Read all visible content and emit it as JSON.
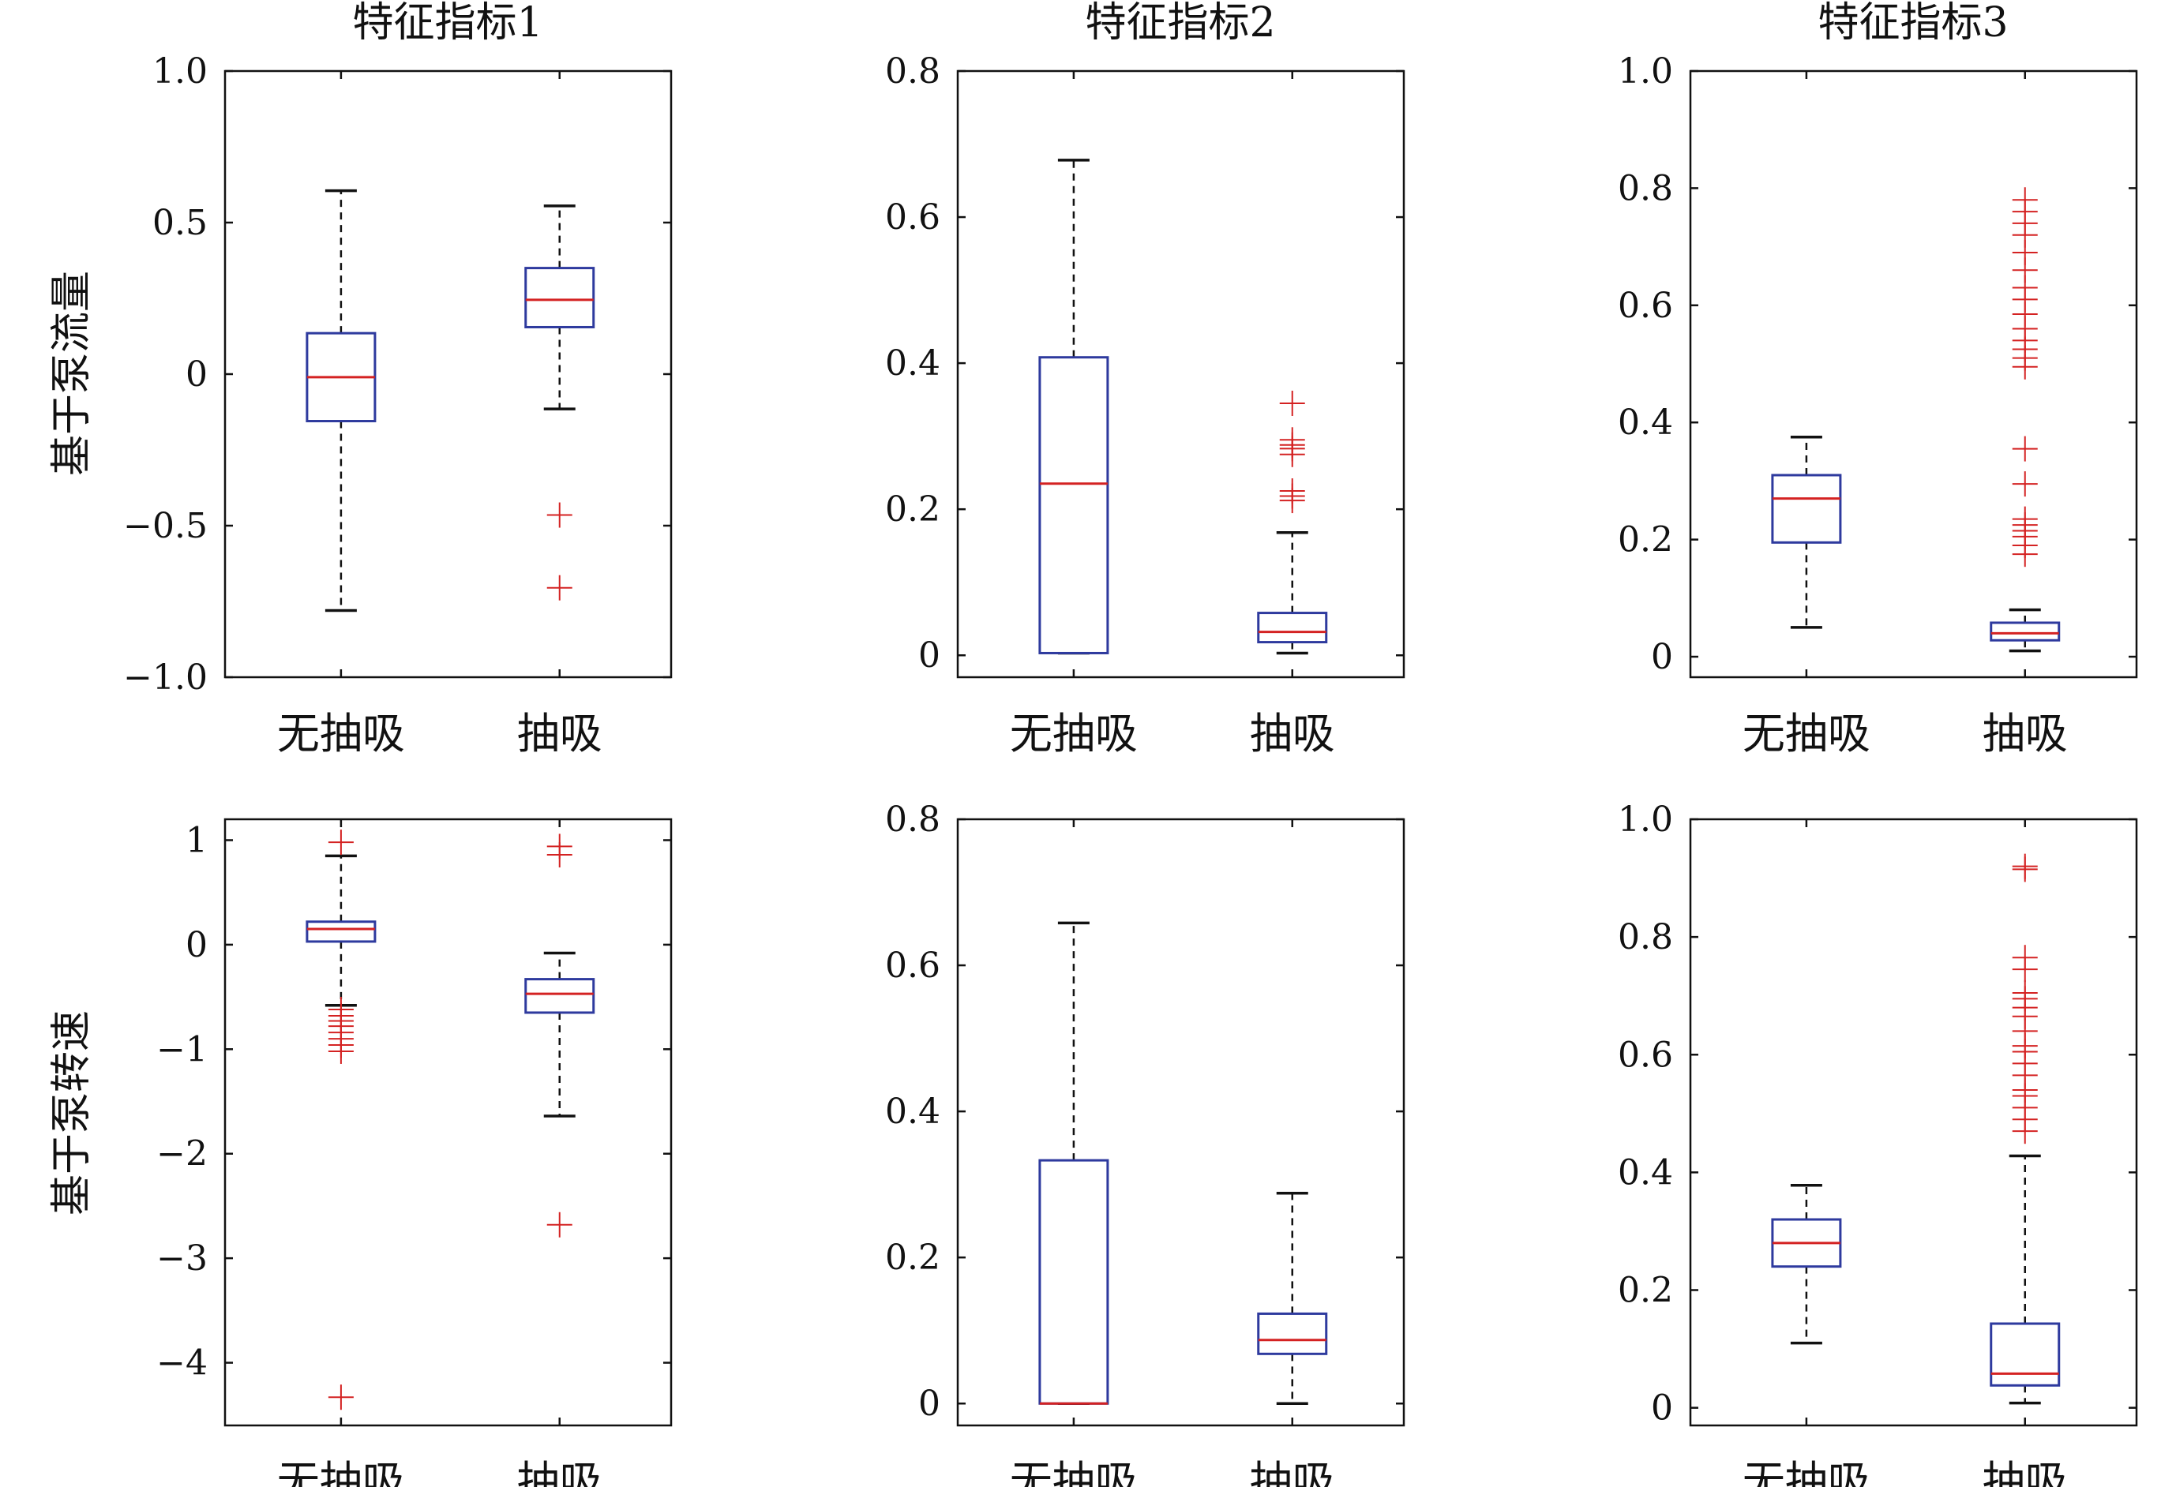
{
  "colors": {
    "box": "#2e3a9e",
    "median": "#d42222",
    "outlier": "#d42222",
    "whisker": "#111111",
    "axis": "#111111"
  },
  "column_titles": [
    "特征指标1",
    "特征指标2",
    "特征指标3"
  ],
  "row_labels": [
    "基于泵流量",
    "基于泵转速"
  ],
  "chart_data": [
    {
      "type": "boxplot",
      "row": 0,
      "col": 0,
      "categories": [
        "无抽吸",
        "抽吸"
      ],
      "ylim": [
        -1.0,
        1.0
      ],
      "yticks": [
        -1.0,
        -0.5,
        0,
        0.5,
        1.0
      ],
      "ytick_labels": [
        "−1.0",
        "−0.5",
        "0",
        "0.5",
        "1.0"
      ],
      "boxes": [
        {
          "whisker_low": -0.78,
          "q1": -0.155,
          "median": -0.01,
          "q3": 0.135,
          "whisker_high": 0.605,
          "outliers": []
        },
        {
          "whisker_low": -0.115,
          "q1": 0.155,
          "median": 0.245,
          "q3": 0.35,
          "whisker_high": 0.555,
          "outliers": [
            -0.465,
            -0.705
          ]
        }
      ]
    },
    {
      "type": "boxplot",
      "row": 0,
      "col": 1,
      "categories": [
        "无抽吸",
        "抽吸"
      ],
      "ylim": [
        -0.03,
        0.8
      ],
      "yticks": [
        0,
        0.2,
        0.4,
        0.6,
        0.8
      ],
      "ytick_labels": [
        "0",
        "0.2",
        "0.4",
        "0.6",
        "0.8"
      ],
      "boxes": [
        {
          "whisker_low": 0.003,
          "q1": 0.003,
          "median": 0.235,
          "q3": 0.408,
          "whisker_high": 0.678,
          "outliers": []
        },
        {
          "whisker_low": 0.003,
          "q1": 0.018,
          "median": 0.032,
          "q3": 0.058,
          "whisker_high": 0.168,
          "outliers": [
            0.345,
            0.295,
            0.288,
            0.283,
            0.275,
            0.225,
            0.218,
            0.212
          ]
        }
      ]
    },
    {
      "type": "boxplot",
      "row": 0,
      "col": 2,
      "categories": [
        "无抽吸",
        "抽吸"
      ],
      "ylim": [
        -0.035,
        1.0
      ],
      "yticks": [
        0,
        0.2,
        0.4,
        0.6,
        0.8,
        1.0
      ],
      "ytick_labels": [
        "0",
        "0.2",
        "0.4",
        "0.6",
        "0.8",
        "1.0"
      ],
      "boxes": [
        {
          "whisker_low": 0.05,
          "q1": 0.195,
          "median": 0.27,
          "q3": 0.31,
          "whisker_high": 0.375,
          "outliers": []
        },
        {
          "whisker_low": 0.01,
          "q1": 0.028,
          "median": 0.04,
          "q3": 0.058,
          "whisker_high": 0.08,
          "outliers": [
            0.78,
            0.76,
            0.74,
            0.72,
            0.69,
            0.66,
            0.63,
            0.61,
            0.585,
            0.56,
            0.54,
            0.525,
            0.51,
            0.495,
            0.355,
            0.295,
            0.235,
            0.225,
            0.215,
            0.205,
            0.19,
            0.175
          ]
        }
      ]
    },
    {
      "type": "boxplot",
      "row": 1,
      "col": 0,
      "categories": [
        "无抽吸",
        "抽吸"
      ],
      "ylim": [
        -4.6,
        1.2
      ],
      "yticks": [
        -4,
        -3,
        -2,
        -1,
        0,
        1
      ],
      "ytick_labels": [
        "−4",
        "−3",
        "−2",
        "−1",
        "0",
        "1"
      ],
      "boxes": [
        {
          "whisker_low": -0.58,
          "q1": 0.03,
          "median": 0.15,
          "q3": 0.22,
          "whisker_high": 0.85,
          "outliers": [
            0.98,
            -0.62,
            -0.68,
            -0.73,
            -0.78,
            -0.84,
            -0.9,
            -0.96,
            -1.02,
            -4.33
          ]
        },
        {
          "whisker_low": -1.64,
          "q1": -0.65,
          "median": -0.47,
          "q3": -0.33,
          "whisker_high": -0.08,
          "outliers": [
            0.94,
            0.86,
            -2.68
          ]
        }
      ]
    },
    {
      "type": "boxplot",
      "row": 1,
      "col": 1,
      "categories": [
        "无抽吸",
        "抽吸"
      ],
      "ylim": [
        -0.03,
        0.8
      ],
      "yticks": [
        0,
        0.2,
        0.4,
        0.6,
        0.8
      ],
      "ytick_labels": [
        "0",
        "0.2",
        "0.4",
        "0.6",
        "0.8"
      ],
      "boxes": [
        {
          "whisker_low": 0.0,
          "q1": 0.0,
          "median": 0.0,
          "q3": 0.333,
          "whisker_high": 0.658,
          "outliers": []
        },
        {
          "whisker_low": 0.0,
          "q1": 0.068,
          "median": 0.087,
          "q3": 0.123,
          "whisker_high": 0.288,
          "outliers": []
        }
      ]
    },
    {
      "type": "boxplot",
      "row": 1,
      "col": 2,
      "categories": [
        "无抽吸",
        "抽吸"
      ],
      "ylim": [
        -0.03,
        1.0
      ],
      "yticks": [
        0,
        0.2,
        0.4,
        0.6,
        0.8,
        1.0
      ],
      "ytick_labels": [
        "0",
        "0.2",
        "0.4",
        "0.6",
        "0.8",
        "1.0"
      ],
      "boxes": [
        {
          "whisker_low": 0.11,
          "q1": 0.24,
          "median": 0.28,
          "q3": 0.32,
          "whisker_high": 0.378,
          "outliers": []
        },
        {
          "whisker_low": 0.008,
          "q1": 0.038,
          "median": 0.058,
          "q3": 0.143,
          "whisker_high": 0.428,
          "outliers": [
            0.92,
            0.915,
            0.765,
            0.745,
            0.705,
            0.695,
            0.68,
            0.665,
            0.64,
            0.615,
            0.605,
            0.585,
            0.565,
            0.54,
            0.53,
            0.51,
            0.49,
            0.47
          ]
        }
      ]
    }
  ]
}
